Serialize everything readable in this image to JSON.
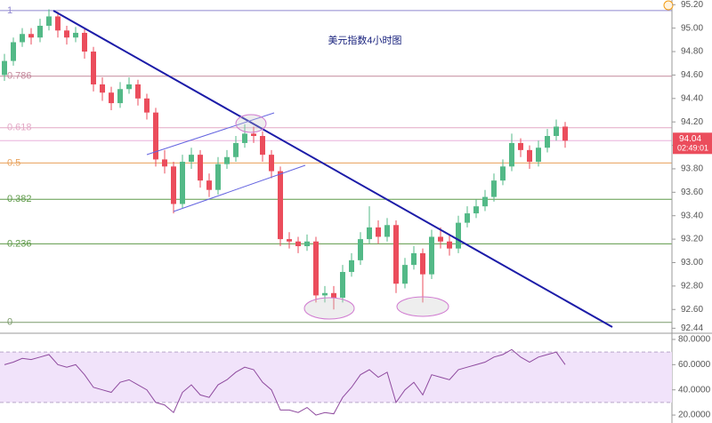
{
  "chart_data": {
    "type": "candlestick",
    "title": "美元指数4小时图",
    "up_color": "#53b987",
    "down_color": "#eb4d5c",
    "ylim": [
      92.42,
      95.24
    ],
    "yticks": [
      {
        "value": 95.2,
        "label": "95.20"
      },
      {
        "value": 95.0,
        "label": "95.00"
      },
      {
        "value": 94.8,
        "label": "94.80"
      },
      {
        "value": 94.6,
        "label": "94.60"
      },
      {
        "value": 94.4,
        "label": "94.40"
      },
      {
        "value": 94.2,
        "label": "94.20"
      },
      {
        "value": 94.0,
        "label": "94.00"
      },
      {
        "value": 93.8,
        "label": "93.80"
      },
      {
        "value": 93.6,
        "label": "93.60"
      },
      {
        "value": 93.4,
        "label": "93.40"
      },
      {
        "value": 93.2,
        "label": "93.20"
      },
      {
        "value": 93.0,
        "label": "93.00"
      },
      {
        "value": 92.8,
        "label": "92.80"
      },
      {
        "value": 92.6,
        "label": "92.60"
      },
      {
        "value": 92.44,
        "label": "92.44"
      }
    ],
    "fib_levels": [
      {
        "ratio": 1,
        "price": 95.15,
        "color": "#8f86cf"
      },
      {
        "ratio": 0.786,
        "price": 94.59,
        "color": "#c4899c"
      },
      {
        "ratio": 0.618,
        "price": 94.15,
        "color": "#e3a9c6"
      },
      {
        "ratio": 0.5,
        "price": 93.85,
        "color": "#e8a15a"
      },
      {
        "ratio": 0.382,
        "price": 93.54,
        "color": "#5f9a4a"
      },
      {
        "ratio": 0.236,
        "price": 93.16,
        "color": "#5f9a4a"
      },
      {
        "ratio": 0,
        "price": 92.49,
        "color": "#7a9a6a"
      }
    ],
    "last_price": 94.04,
    "countdown": "02:49:01",
    "last_color": "#eb4d5c",
    "candles": [
      [
        94.6,
        94.78,
        94.55,
        94.72
      ],
      [
        94.72,
        94.92,
        94.68,
        94.88
      ],
      [
        94.88,
        95.0,
        94.84,
        94.95
      ],
      [
        94.95,
        95.0,
        94.86,
        94.92
      ],
      [
        94.92,
        95.08,
        94.88,
        95.02
      ],
      [
        95.02,
        95.16,
        94.98,
        95.1
      ],
      [
        95.1,
        95.14,
        94.92,
        94.98
      ],
      [
        94.98,
        95.02,
        94.86,
        94.92
      ],
      [
        94.92,
        95.01,
        94.88,
        94.96
      ],
      [
        94.96,
        94.99,
        94.74,
        94.8
      ],
      [
        94.8,
        94.84,
        94.46,
        94.52
      ],
      [
        94.52,
        94.58,
        94.38,
        94.45
      ],
      [
        94.45,
        94.5,
        94.3,
        94.36
      ],
      [
        94.36,
        94.54,
        94.32,
        94.48
      ],
      [
        94.48,
        94.58,
        94.44,
        94.52
      ],
      [
        94.52,
        94.56,
        94.34,
        94.4
      ],
      [
        94.4,
        94.44,
        94.22,
        94.28
      ],
      [
        94.28,
        94.32,
        93.82,
        93.88
      ],
      [
        93.88,
        93.96,
        93.76,
        93.82
      ],
      [
        93.82,
        93.86,
        93.42,
        93.5
      ],
      [
        93.5,
        93.92,
        93.46,
        93.86
      ],
      [
        93.86,
        93.98,
        93.8,
        93.92
      ],
      [
        93.92,
        93.96,
        93.64,
        93.7
      ],
      [
        93.7,
        93.76,
        93.56,
        93.62
      ],
      [
        93.62,
        93.9,
        93.58,
        93.84
      ],
      [
        93.84,
        93.96,
        93.8,
        93.9
      ],
      [
        93.9,
        94.08,
        93.86,
        94.02
      ],
      [
        94.02,
        94.18,
        93.98,
        94.1
      ],
      [
        94.1,
        94.16,
        94.02,
        94.08
      ],
      [
        94.08,
        94.12,
        93.86,
        93.92
      ],
      [
        93.92,
        93.96,
        93.72,
        93.78
      ],
      [
        93.78,
        93.82,
        93.14,
        93.2
      ],
      [
        93.2,
        93.26,
        93.12,
        93.18
      ],
      [
        93.18,
        93.22,
        93.08,
        93.14
      ],
      [
        93.14,
        93.24,
        93.1,
        93.18
      ],
      [
        93.18,
        93.22,
        92.66,
        92.72
      ],
      [
        92.72,
        92.8,
        92.66,
        92.74
      ],
      [
        92.74,
        92.8,
        92.6,
        92.7
      ],
      [
        92.7,
        92.98,
        92.66,
        92.92
      ],
      [
        92.92,
        93.08,
        92.88,
        93.02
      ],
      [
        93.02,
        93.26,
        92.98,
        93.2
      ],
      [
        93.2,
        93.48,
        93.16,
        93.3
      ],
      [
        93.3,
        93.36,
        93.16,
        93.22
      ],
      [
        93.22,
        93.38,
        93.18,
        93.32
      ],
      [
        93.32,
        93.36,
        92.74,
        92.82
      ],
      [
        92.82,
        93.04,
        92.78,
        92.98
      ],
      [
        92.98,
        93.14,
        92.94,
        93.08
      ],
      [
        93.08,
        93.12,
        92.66,
        92.9
      ],
      [
        92.9,
        93.28,
        92.86,
        93.22
      ],
      [
        93.22,
        93.3,
        93.12,
        93.18
      ],
      [
        93.18,
        93.24,
        93.06,
        93.12
      ],
      [
        93.12,
        93.4,
        93.08,
        93.34
      ],
      [
        93.34,
        93.48,
        93.3,
        93.42
      ],
      [
        93.42,
        93.54,
        93.38,
        93.48
      ],
      [
        93.48,
        93.62,
        93.44,
        93.56
      ],
      [
        93.56,
        93.76,
        93.52,
        93.7
      ],
      [
        93.7,
        93.88,
        93.66,
        93.82
      ],
      [
        93.82,
        94.1,
        93.78,
        94.02
      ],
      [
        94.02,
        94.06,
        93.9,
        93.96
      ],
      [
        93.96,
        94.0,
        93.8,
        93.86
      ],
      [
        93.86,
        94.04,
        93.82,
        93.98
      ],
      [
        93.98,
        94.14,
        93.94,
        94.08
      ],
      [
        94.08,
        94.22,
        94.04,
        94.16
      ],
      [
        94.16,
        94.2,
        93.98,
        94.04
      ]
    ],
    "rsi": {
      "color": "#8e4a9e",
      "band": [
        30,
        70
      ],
      "band_color": "#f1e3fa",
      "ylim": [
        13.7,
        82.8
      ],
      "yticks": [
        {
          "value": 80,
          "label": "80.0000"
        },
        {
          "value": 60,
          "label": "60.0000"
        },
        {
          "value": 40,
          "label": "40.0000"
        },
        {
          "value": 20,
          "label": "20.0000"
        }
      ],
      "values": [
        60,
        62,
        65,
        64,
        66,
        68,
        60,
        58,
        60,
        52,
        42,
        40,
        38,
        46,
        48,
        44,
        40,
        30,
        28,
        22,
        38,
        44,
        36,
        34,
        44,
        48,
        54,
        58,
        56,
        46,
        40,
        24,
        24,
        22,
        26,
        20,
        22,
        21,
        34,
        42,
        52,
        56,
        50,
        54,
        30,
        40,
        46,
        36,
        52,
        50,
        48,
        56,
        58,
        60,
        62,
        66,
        68,
        72,
        66,
        62,
        66,
        68,
        70,
        60
      ]
    }
  }
}
